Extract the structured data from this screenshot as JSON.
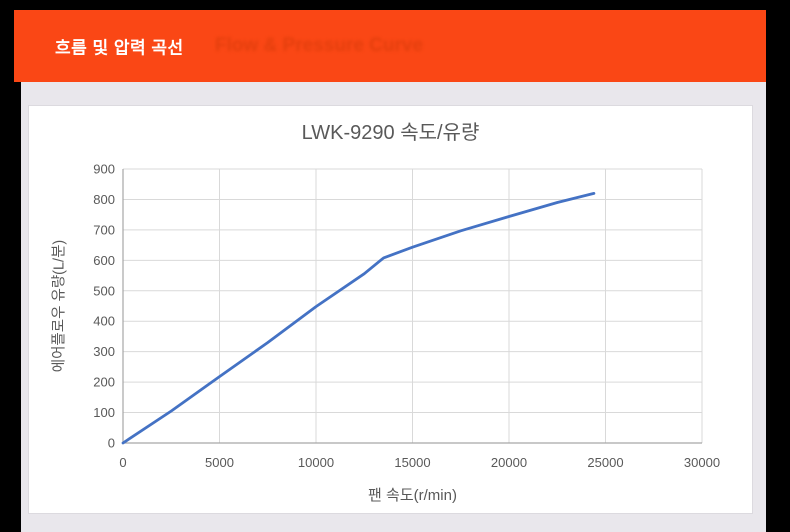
{
  "page": {
    "frame_color": "#000000",
    "content_background": "#E9E7EC",
    "card_background": "#FFFFFF"
  },
  "banner": {
    "title_ko": "흐름 및 압력 곡선",
    "title_en_ghost": "Flow & Pressure Curve",
    "background_color": "#FA4715",
    "title_color": "#FFFFFF",
    "ghost_color": "#E03E0C"
  },
  "chart_data": {
    "type": "line",
    "title": "LWK-9290 속도/유량",
    "xlabel": "팬 속도(r/min)",
    "ylabel": "에어플로우 유량(L/분)",
    "xlim": [
      0,
      30000
    ],
    "ylim": [
      0,
      900
    ],
    "x_ticks": [
      0,
      5000,
      10000,
      15000,
      20000,
      25000,
      30000
    ],
    "y_ticks": [
      0,
      100,
      200,
      300,
      400,
      500,
      600,
      700,
      800,
      900
    ],
    "grid": true,
    "legend": "none",
    "series": [
      {
        "name": "속도/유량",
        "color": "#4472C4",
        "points": [
          [
            0,
            0
          ],
          [
            2500,
            105
          ],
          [
            5000,
            218
          ],
          [
            7500,
            330
          ],
          [
            10000,
            448
          ],
          [
            12500,
            556
          ],
          [
            13500,
            608
          ],
          [
            15000,
            643
          ],
          [
            17500,
            697
          ],
          [
            20000,
            744
          ],
          [
            22500,
            790
          ],
          [
            24400,
            820
          ]
        ]
      }
    ],
    "style": {
      "gridline_color": "#D9D9D9",
      "axis_line_color": "#A6A6A6",
      "tick_text_color": "#595959",
      "title_color": "#595959",
      "tick_font_size": 13
    }
  }
}
